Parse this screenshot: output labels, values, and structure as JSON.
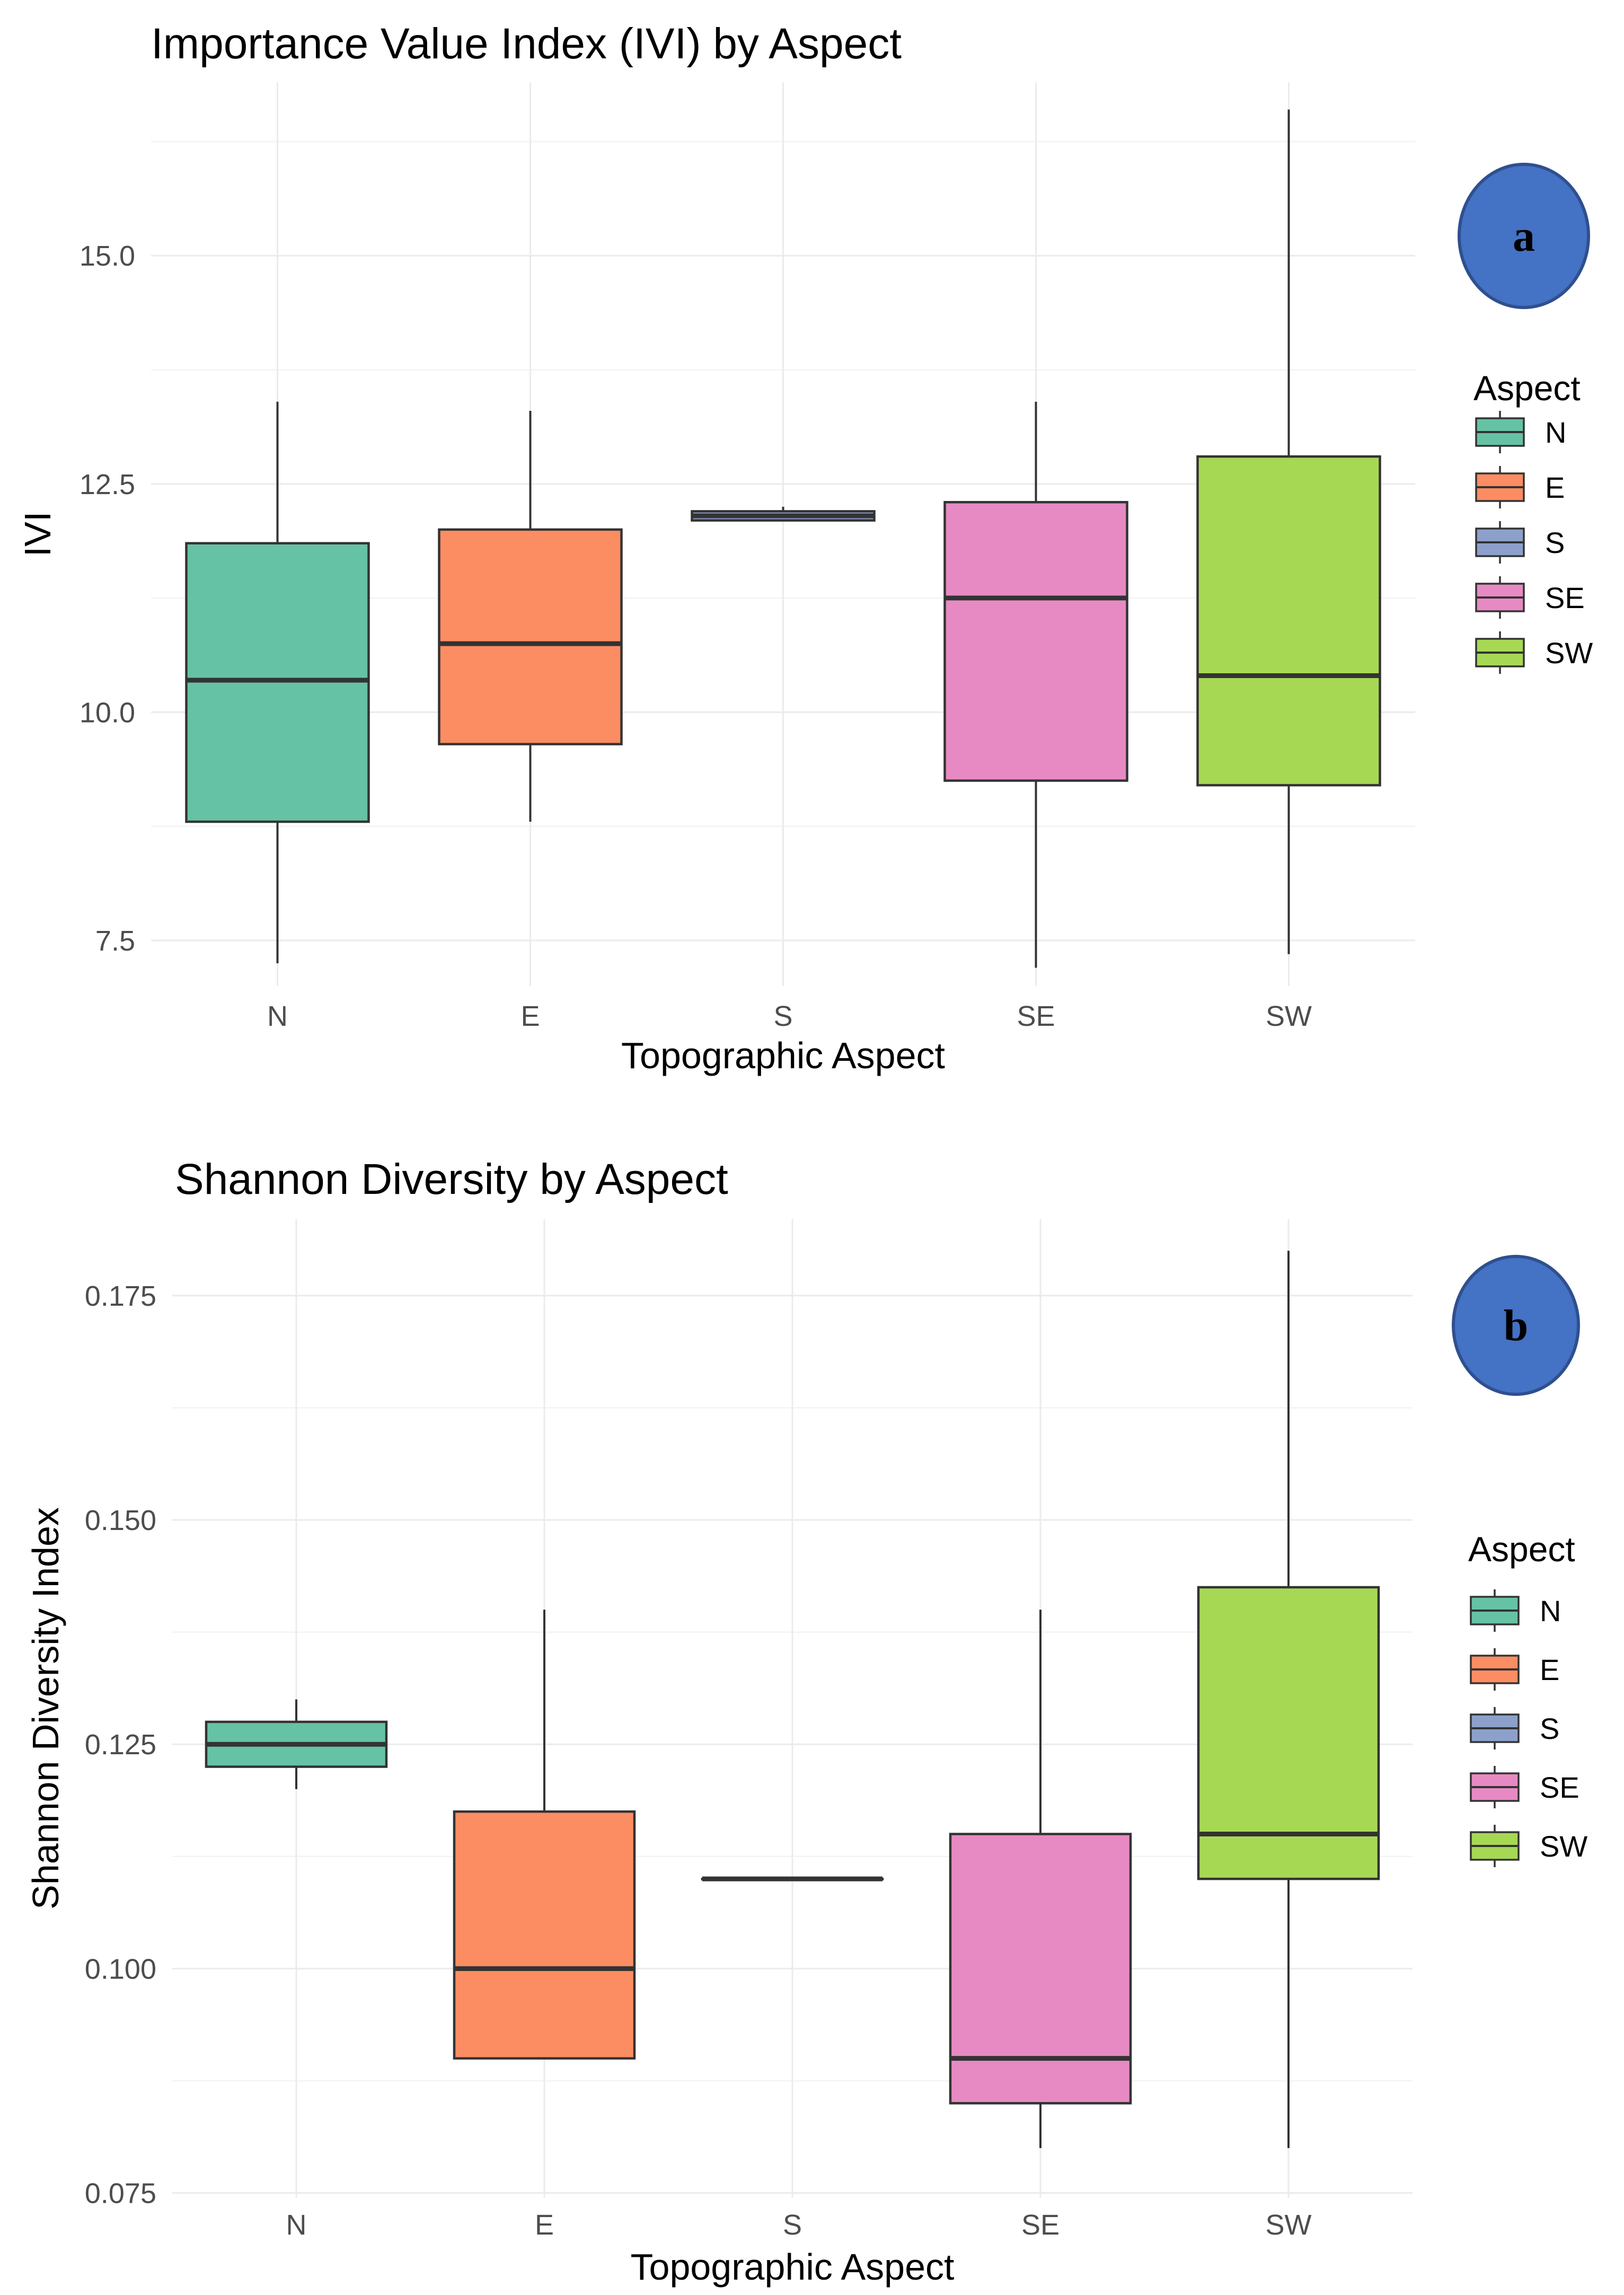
{
  "chart_data": [
    {
      "type": "boxplot",
      "title": "Importance Value Index (IVI) by Aspect",
      "xlabel": "Topographic Aspect",
      "ylabel": "IVI",
      "categories": [
        "N",
        "E",
        "S",
        "SE",
        "SW"
      ],
      "yticks": [
        "7.5",
        "10.0",
        "12.5",
        "15.0"
      ],
      "ylim": [
        7.0,
        16.9
      ],
      "grid": true,
      "legend": {
        "title": "Aspect",
        "position": "right",
        "entries": [
          "N",
          "E",
          "S",
          "SE",
          "SW"
        ]
      },
      "badge": "a",
      "boxes": [
        {
          "category": "N",
          "min": 7.25,
          "q1": 8.8,
          "median": 10.35,
          "q3": 11.85,
          "max": 13.4
        },
        {
          "category": "E",
          "min": 8.8,
          "q1": 9.65,
          "median": 10.75,
          "q3": 12.0,
          "max": 13.3
        },
        {
          "category": "S",
          "min": 12.1,
          "q1": 12.1,
          "median": 12.15,
          "q3": 12.2,
          "max": 12.25
        },
        {
          "category": "SE",
          "min": 7.2,
          "q1": 9.25,
          "median": 11.25,
          "q3": 12.3,
          "max": 13.4
        },
        {
          "category": "SW",
          "min": 7.35,
          "q1": 9.2,
          "median": 10.4,
          "q3": 12.8,
          "max": 16.6
        }
      ]
    },
    {
      "type": "boxplot",
      "title": "Shannon Diversity by Aspect",
      "xlabel": "Topographic Aspect",
      "ylabel": "Shannon Diversity Index",
      "categories": [
        "N",
        "E",
        "S",
        "SE",
        "SW"
      ],
      "yticks": [
        "0.075",
        "0.100",
        "0.125",
        "0.150",
        "0.175"
      ],
      "ylim": [
        0.0745,
        0.1835
      ],
      "grid": true,
      "legend": {
        "title": "Aspect",
        "position": "right",
        "entries": [
          "N",
          "E",
          "S",
          "SE",
          "SW"
        ]
      },
      "badge": "b",
      "boxes": [
        {
          "category": "N",
          "min": 0.12,
          "q1": 0.1225,
          "median": 0.125,
          "q3": 0.1275,
          "max": 0.13
        },
        {
          "category": "E",
          "min": 0.09,
          "q1": 0.09,
          "median": 0.1,
          "q3": 0.1175,
          "max": 0.14
        },
        {
          "category": "S",
          "min": 0.11,
          "q1": 0.11,
          "median": 0.11,
          "q3": 0.11,
          "max": 0.11
        },
        {
          "category": "SE",
          "min": 0.08,
          "q1": 0.085,
          "median": 0.09,
          "q3": 0.115,
          "max": 0.14
        },
        {
          "category": "SW",
          "min": 0.08,
          "q1": 0.11,
          "median": 0.115,
          "q3": 0.1425,
          "max": 0.18
        }
      ]
    }
  ],
  "colors": {
    "N": "#66c2a5",
    "E": "#fc8d62",
    "S": "#8da0cb",
    "SE": "#e78ac3",
    "SW": "#a6d854",
    "badge_fill": "#4472c4",
    "badge_stroke": "#2f4f8f",
    "line": "#333333",
    "grid": "#ebebeb"
  }
}
